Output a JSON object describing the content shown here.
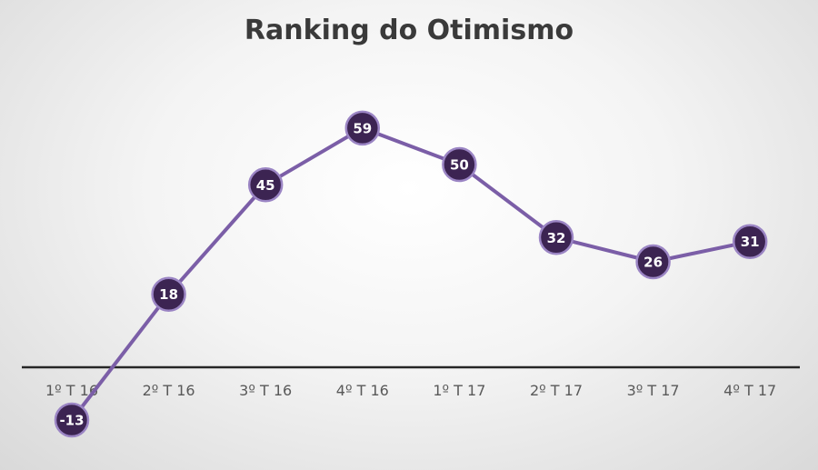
{
  "chart_data": {
    "type": "line",
    "title": "Ranking do Otimismo",
    "xlabel": "",
    "ylabel": "",
    "categories": [
      "1º T 16",
      "2º T 16",
      "3º T 16",
      "4º T 16",
      "1º T 17",
      "2º T 17",
      "3º T 17",
      "4º T 17"
    ],
    "series": [
      {
        "values": [
          -13,
          18,
          45,
          59,
          50,
          32,
          26,
          31
        ]
      }
    ],
    "ylim": [
      -20,
      70
    ],
    "grid": false,
    "legend": "none",
    "colors": {
      "line": "#7b5ea7",
      "marker_fill": "#3c2452",
      "marker_stroke": "#9b85c4",
      "label": "#ffffff",
      "axis": "#262626",
      "tick_label": "#595959"
    }
  }
}
